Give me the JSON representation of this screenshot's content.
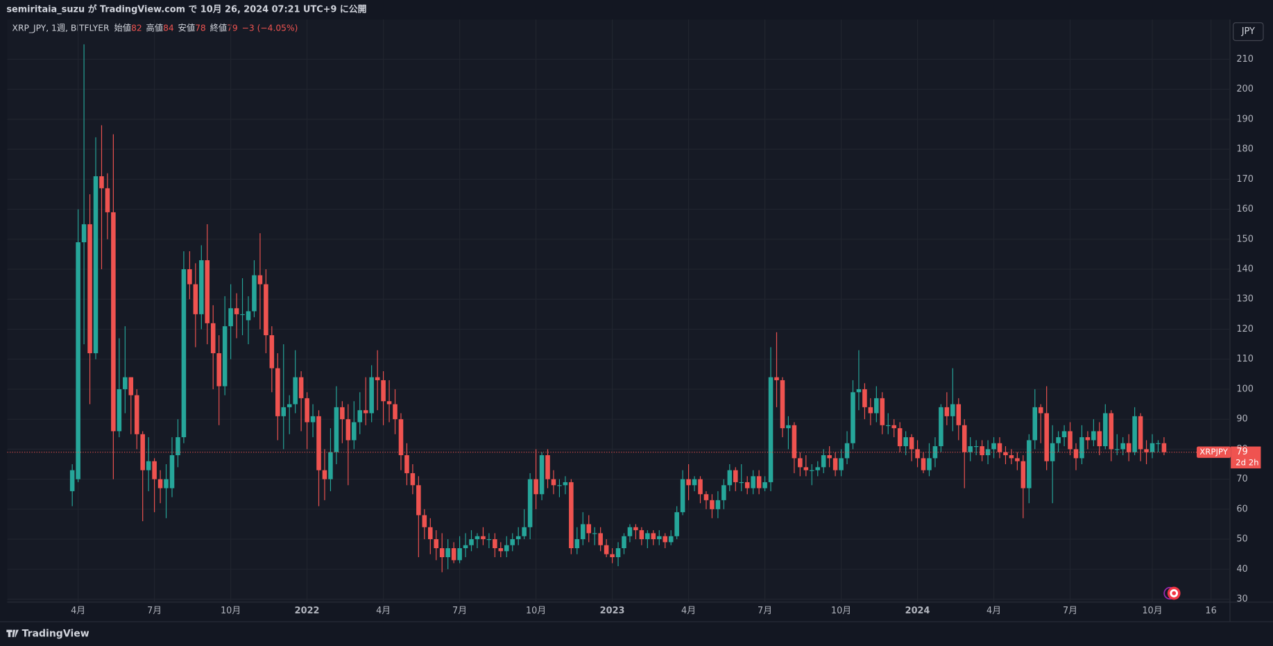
{
  "header": {
    "published": "semiritaia_suzu が TradingView.com で 10月 26, 2024 07:21 UTC+9 に公開"
  },
  "footer": {
    "brand": "TradingView"
  },
  "chart_data": {
    "type": "candlestick",
    "title": "XRP_JPY, 1週, BITFLYER",
    "legend_labels": {
      "open": "始値",
      "high": "高値",
      "low": "安値",
      "close": "終値"
    },
    "change_label": "−3 (−4.05%)",
    "currency": "JPY",
    "price_tag": "XRPJPY",
    "countdown": "2d 2h",
    "up_color": "#26a69a",
    "down_color": "#ef5350",
    "grid": true,
    "ylim": [
      29,
      223
    ],
    "yticks": [
      30,
      40,
      50,
      60,
      70,
      80,
      90,
      100,
      110,
      120,
      130,
      140,
      150,
      160,
      170,
      180,
      190,
      200,
      210
    ],
    "xticks": [
      {
        "value": 1,
        "label": "4月"
      },
      {
        "value": 14,
        "label": "7月"
      },
      {
        "value": 27,
        "label": "10月"
      },
      {
        "value": 40,
        "label": "2022"
      },
      {
        "value": 53,
        "label": "4月"
      },
      {
        "value": 66,
        "label": "7月"
      },
      {
        "value": 79,
        "label": "10月"
      },
      {
        "value": 92,
        "label": "2023"
      },
      {
        "value": 105,
        "label": "4月"
      },
      {
        "value": 118,
        "label": "7月"
      },
      {
        "value": 131,
        "label": "10月"
      },
      {
        "value": 144,
        "label": "2024"
      },
      {
        "value": 157,
        "label": "4月"
      },
      {
        "value": 170,
        "label": "7月"
      },
      {
        "value": 184,
        "label": "10月"
      },
      {
        "value": 194,
        "label": "16"
      }
    ],
    "open": [
      66,
      70,
      149,
      155,
      112,
      171,
      167,
      159,
      86,
      100,
      104,
      98,
      85,
      73,
      76,
      70,
      67,
      67,
      78,
      84,
      140,
      135,
      125,
      143,
      122,
      112,
      101,
      121,
      127,
      125,
      123,
      126,
      138,
      135,
      118,
      107,
      91,
      94,
      95,
      104,
      97,
      89,
      91,
      73,
      70,
      79,
      94,
      90,
      83,
      89,
      93,
      92,
      104,
      103,
      96,
      95,
      90,
      78,
      72,
      68,
      58,
      54,
      50,
      47,
      44,
      47,
      43,
      47,
      48,
      50,
      51,
      50,
      50,
      47,
      46,
      48,
      50,
      51,
      54,
      70,
      65,
      78,
      70,
      68,
      68,
      69,
      47,
      50,
      55,
      52,
      52,
      48,
      45,
      44,
      47,
      51,
      54,
      53,
      50,
      52,
      50,
      51,
      49,
      51,
      59,
      70,
      68,
      70,
      65,
      63,
      60,
      63,
      68,
      73,
      69,
      69,
      67,
      71,
      67,
      69,
      104,
      103,
      87,
      88,
      77,
      74,
      73,
      73,
      74,
      78,
      77,
      73,
      77,
      82,
      99,
      100,
      94,
      92,
      97,
      88,
      88,
      87,
      81,
      84,
      80,
      77,
      73,
      77,
      81,
      94,
      91,
      95,
      88,
      79,
      81,
      81,
      78,
      80,
      82,
      79,
      78,
      77,
      76,
      67,
      83,
      94,
      92,
      76,
      82,
      84,
      86,
      80,
      77,
      84,
      83,
      86,
      81,
      92,
      80,
      80,
      82,
      79,
      91,
      80,
      79,
      82,
      82
    ],
    "high": [
      75,
      160,
      215,
      165,
      184,
      188,
      172,
      185,
      117,
      121,
      104,
      100,
      86,
      84,
      77,
      73,
      75,
      84,
      90,
      146,
      146,
      142,
      148,
      155,
      128,
      118,
      131,
      135,
      132,
      137,
      131,
      143,
      152,
      140,
      121,
      112,
      115,
      98,
      113,
      106,
      99,
      95,
      93,
      80,
      87,
      101,
      96,
      95,
      96,
      99,
      104,
      108,
      113,
      106,
      103,
      100,
      92,
      82,
      75,
      71,
      60,
      57,
      53,
      52,
      50,
      49,
      51,
      52,
      53,
      52,
      54,
      52,
      52,
      49,
      51,
      52,
      54,
      60,
      72,
      80,
      79,
      80,
      73,
      70,
      71,
      70,
      54,
      59,
      58,
      54,
      54,
      50,
      47,
      49,
      52,
      55,
      55,
      54,
      53,
      53,
      53,
      52,
      53,
      61,
      73,
      75,
      71,
      71,
      66,
      65,
      66,
      70,
      75,
      74,
      75,
      71,
      73,
      73,
      71,
      114,
      119,
      104,
      91,
      89,
      79,
      78,
      75,
      76,
      80,
      81,
      79,
      80,
      86,
      103,
      113,
      102,
      97,
      101,
      99,
      92,
      90,
      89,
      86,
      85,
      83,
      79,
      82,
      84,
      95,
      99,
      107,
      97,
      90,
      84,
      83,
      83,
      83,
      84,
      84,
      81,
      80,
      79,
      78,
      85,
      100,
      95,
      101,
      88,
      86,
      88,
      89,
      82,
      88,
      86,
      90,
      89,
      95,
      93,
      85,
      84,
      85,
      94,
      92,
      83,
      85,
      83,
      84
    ],
    "low": [
      61,
      69,
      115,
      95,
      110,
      140,
      150,
      70,
      84,
      92,
      85,
      80,
      56,
      66,
      59,
      62,
      57,
      64,
      74,
      82,
      130,
      114,
      120,
      115,
      100,
      88,
      98,
      110,
      117,
      118,
      115,
      124,
      120,
      112,
      99,
      83,
      80,
      85,
      92,
      86,
      80,
      84,
      61,
      63,
      66,
      75,
      82,
      68,
      80,
      85,
      88,
      89,
      93,
      88,
      89,
      85,
      73,
      68,
      65,
      44,
      50,
      45,
      43,
      39,
      40,
      42,
      42,
      44,
      46,
      47,
      48,
      47,
      44,
      44,
      44,
      46,
      48,
      50,
      50,
      60,
      63,
      67,
      65,
      64,
      65,
      45,
      45,
      48,
      49,
      48,
      46,
      44,
      42,
      41,
      45,
      49,
      50,
      48,
      47,
      48,
      48,
      47,
      48,
      50,
      58,
      63,
      66,
      62,
      60,
      57,
      57,
      60,
      66,
      66,
      66,
      65,
      65,
      65,
      66,
      66,
      94,
      84,
      80,
      72,
      71,
      71,
      68,
      71,
      72,
      74,
      71,
      71,
      75,
      80,
      93,
      90,
      88,
      89,
      85,
      85,
      84,
      79,
      78,
      76,
      74,
      72,
      71,
      74,
      79,
      88,
      86,
      83,
      67,
      76,
      78,
      76,
      75,
      77,
      77,
      75,
      75,
      73,
      57,
      62,
      80,
      82,
      73,
      62,
      79,
      81,
      78,
      73,
      75,
      80,
      81,
      78,
      80,
      76,
      78,
      78,
      76,
      78,
      76,
      75,
      77,
      79,
      78
    ],
    "close": [
      73,
      149,
      155,
      112,
      171,
      167,
      159,
      86,
      100,
      104,
      98,
      85,
      73,
      76,
      70,
      67,
      70,
      78,
      84,
      140,
      135,
      125,
      143,
      122,
      112,
      101,
      121,
      127,
      125,
      125,
      126,
      138,
      135,
      118,
      107,
      91,
      94,
      95,
      104,
      97,
      89,
      91,
      73,
      70,
      79,
      94,
      90,
      83,
      89,
      93,
      92,
      104,
      103,
      96,
      95,
      90,
      78,
      72,
      68,
      58,
      54,
      50,
      47,
      44,
      47,
      43,
      47,
      48,
      50,
      51,
      50,
      50,
      47,
      46,
      48,
      50,
      51,
      54,
      70,
      65,
      78,
      70,
      68,
      68,
      69,
      47,
      50,
      55,
      52,
      52,
      48,
      45,
      44,
      47,
      51,
      54,
      53,
      50,
      52,
      50,
      51,
      49,
      51,
      59,
      70,
      68,
      70,
      65,
      63,
      60,
      63,
      68,
      73,
      69,
      69,
      67,
      71,
      67,
      69,
      104,
      103,
      87,
      88,
      77,
      74,
      73,
      73,
      74,
      78,
      77,
      73,
      77,
      82,
      99,
      100,
      94,
      92,
      97,
      88,
      88,
      87,
      81,
      84,
      80,
      77,
      73,
      77,
      81,
      94,
      91,
      95,
      88,
      79,
      81,
      81,
      78,
      80,
      82,
      79,
      78,
      77,
      76,
      67,
      83,
      94,
      92,
      76,
      82,
      84,
      86,
      80,
      77,
      84,
      83,
      86,
      81,
      92,
      80,
      80,
      82,
      79,
      91,
      80,
      79,
      82,
      82,
      79
    ]
  }
}
